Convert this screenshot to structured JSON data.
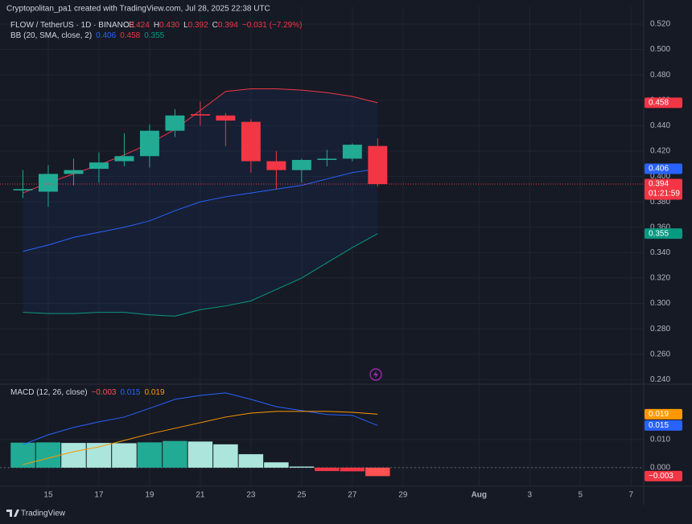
{
  "header": {
    "credit": "Cryptopolitan_pa1 created with TradingView.com, Jul 28, 2025 22:38 UTC",
    "symbol": "FLOW / TetherUS · 1D · BINANCE",
    "ohlc": [
      {
        "key": "O",
        "text": "0.424"
      },
      {
        "key": "H",
        "text": "0.430"
      },
      {
        "key": "L",
        "text": "0.392"
      },
      {
        "key": "C",
        "text": "0.394"
      }
    ],
    "change": "−0.031 (−7.29%)",
    "brand": "TradingView"
  },
  "chart_data": [
    {
      "type": "candlestick",
      "x": [
        14,
        15,
        16,
        17,
        18,
        19,
        20,
        21,
        22,
        23,
        24,
        25,
        26,
        27,
        28
      ],
      "open": [
        0.389,
        0.388,
        0.402,
        0.406,
        0.412,
        0.416,
        0.436,
        0.449,
        0.448,
        0.443,
        0.412,
        0.405,
        0.413,
        0.414,
        0.424
      ],
      "high": [
        0.405,
        0.409,
        0.414,
        0.419,
        0.434,
        0.441,
        0.453,
        0.459,
        0.45,
        0.445,
        0.42,
        0.414,
        0.421,
        0.426,
        0.43
      ],
      "low": [
        0.383,
        0.376,
        0.393,
        0.395,
        0.408,
        0.407,
        0.431,
        0.44,
        0.424,
        0.403,
        0.39,
        0.395,
        0.408,
        0.412,
        0.392
      ],
      "close": [
        0.39,
        0.402,
        0.405,
        0.411,
        0.416,
        0.436,
        0.448,
        0.448,
        0.444,
        0.412,
        0.405,
        0.413,
        0.414,
        0.425,
        0.394
      ],
      "up_color": "#22ab94",
      "down_color": "#f23645",
      "legend_title": "BB (20, SMA, close, 2)",
      "legend_values": [
        "0.406",
        "0.458",
        "0.355"
      ],
      "series": [
        {
          "color": "#2962ff",
          "values": [
            0.341,
            0.346,
            0.352,
            0.356,
            0.36,
            0.365,
            0.373,
            0.38,
            0.384,
            0.387,
            0.39,
            0.393,
            0.398,
            0.403,
            0.406
          ]
        },
        {
          "color": "#f23645",
          "values": [
            0.387,
            0.395,
            0.402,
            0.409,
            0.417,
            0.426,
            0.437,
            0.452,
            0.467,
            0.469,
            0.469,
            0.468,
            0.466,
            0.463,
            0.458
          ]
        },
        {
          "color": "#089981",
          "values": [
            0.293,
            0.292,
            0.292,
            0.293,
            0.293,
            0.291,
            0.29,
            0.295,
            0.298,
            0.302,
            0.311,
            0.32,
            0.332,
            0.344,
            0.355
          ]
        }
      ],
      "xlim": [
        13.35,
        38.5
      ],
      "xticks": [
        15,
        17,
        19,
        21,
        23,
        25,
        27,
        29,
        {
          "value": 32,
          "label": "Aug"
        },
        {
          "value": 34,
          "label": "3"
        },
        {
          "value": 36,
          "label": "5"
        },
        {
          "value": 38,
          "label": "7"
        }
      ],
      "ylim": [
        0.2364,
        0.5339
      ],
      "yticks": [
        {
          "value": 0.52,
          "label": "0.520"
        },
        {
          "value": 0.5,
          "label": "0.500"
        },
        {
          "value": 0.48,
          "label": "0.480"
        },
        {
          "value": 0.46,
          "label": "0.460"
        },
        {
          "value": 0.44,
          "label": "0.440"
        },
        {
          "value": 0.42,
          "label": "0.420"
        },
        {
          "value": 0.4,
          "label": "0.400"
        },
        {
          "value": 0.38,
          "label": "0.380"
        },
        {
          "value": 0.36,
          "label": "0.360"
        },
        {
          "value": 0.34,
          "label": "0.340"
        },
        {
          "value": 0.32,
          "label": "0.320"
        },
        {
          "value": 0.3,
          "label": "0.300"
        },
        {
          "value": 0.28,
          "label": "0.280"
        },
        {
          "value": 0.26,
          "label": "0.260"
        },
        {
          "value": 0.24,
          "label": "0.240"
        }
      ],
      "grid": true,
      "badges": [
        {
          "value": 0.458,
          "label": "0.458",
          "color": "#f23645"
        },
        {
          "value": 0.406,
          "label": "0.406",
          "color": "#2962ff"
        },
        {
          "value": 0.394,
          "label": "0.394",
          "color": "#f23645",
          "timer": "01:21:59"
        },
        {
          "value": 0.355,
          "label": "0.355",
          "color": "#089981"
        }
      ]
    },
    {
      "type": "macd",
      "legend_title": "MACD (12, 26, close)",
      "legend_values": [
        "−0.003",
        "0.015",
        "0.019"
      ],
      "values": [
        0.0089,
        0.009,
        0.0088,
        0.0088,
        0.0087,
        0.009,
        0.0095,
        0.0093,
        0.0083,
        0.0048,
        0.0019,
        0.0004,
        -0.0012,
        -0.0013,
        -0.003
      ],
      "colors": [
        "#22ab94",
        "#22ab94",
        "#ace5dc",
        "#ace5dc",
        "#ace5dc",
        "#22ab94",
        "#22ab94",
        "#ace5dc",
        "#ace5dc",
        "#ace5dc",
        "#ace5dc",
        "#ace5dc",
        "#f23645",
        "#f23645",
        "#ff5252"
      ],
      "series": [
        {
          "color": "#2962ff",
          "values": [
            0.0082,
            0.0117,
            0.0143,
            0.0163,
            0.018,
            0.0211,
            0.0243,
            0.0257,
            0.0266,
            0.0243,
            0.0217,
            0.0203,
            0.0189,
            0.0186,
            0.015
          ]
        },
        {
          "color": "#ff9800",
          "values": [
            0.0011,
            0.0034,
            0.0057,
            0.0074,
            0.0097,
            0.012,
            0.014,
            0.016,
            0.018,
            0.0194,
            0.02,
            0.02,
            0.02,
            0.0197,
            0.019
          ]
        }
      ],
      "ylim": [
        -0.0066,
        0.0297
      ],
      "yticks": [
        {
          "value": 0.01,
          "label": "0.010"
        },
        {
          "value": 0,
          "label": "0.000"
        }
      ],
      "grid": true,
      "badges": [
        {
          "value": 0.019,
          "label": "0.019",
          "color": "#ff9800"
        },
        {
          "value": 0.015,
          "label": "0.015",
          "color": "#2962ff"
        },
        {
          "value": -0.003,
          "label": "−0.003",
          "color": "#f23645"
        }
      ]
    }
  ]
}
